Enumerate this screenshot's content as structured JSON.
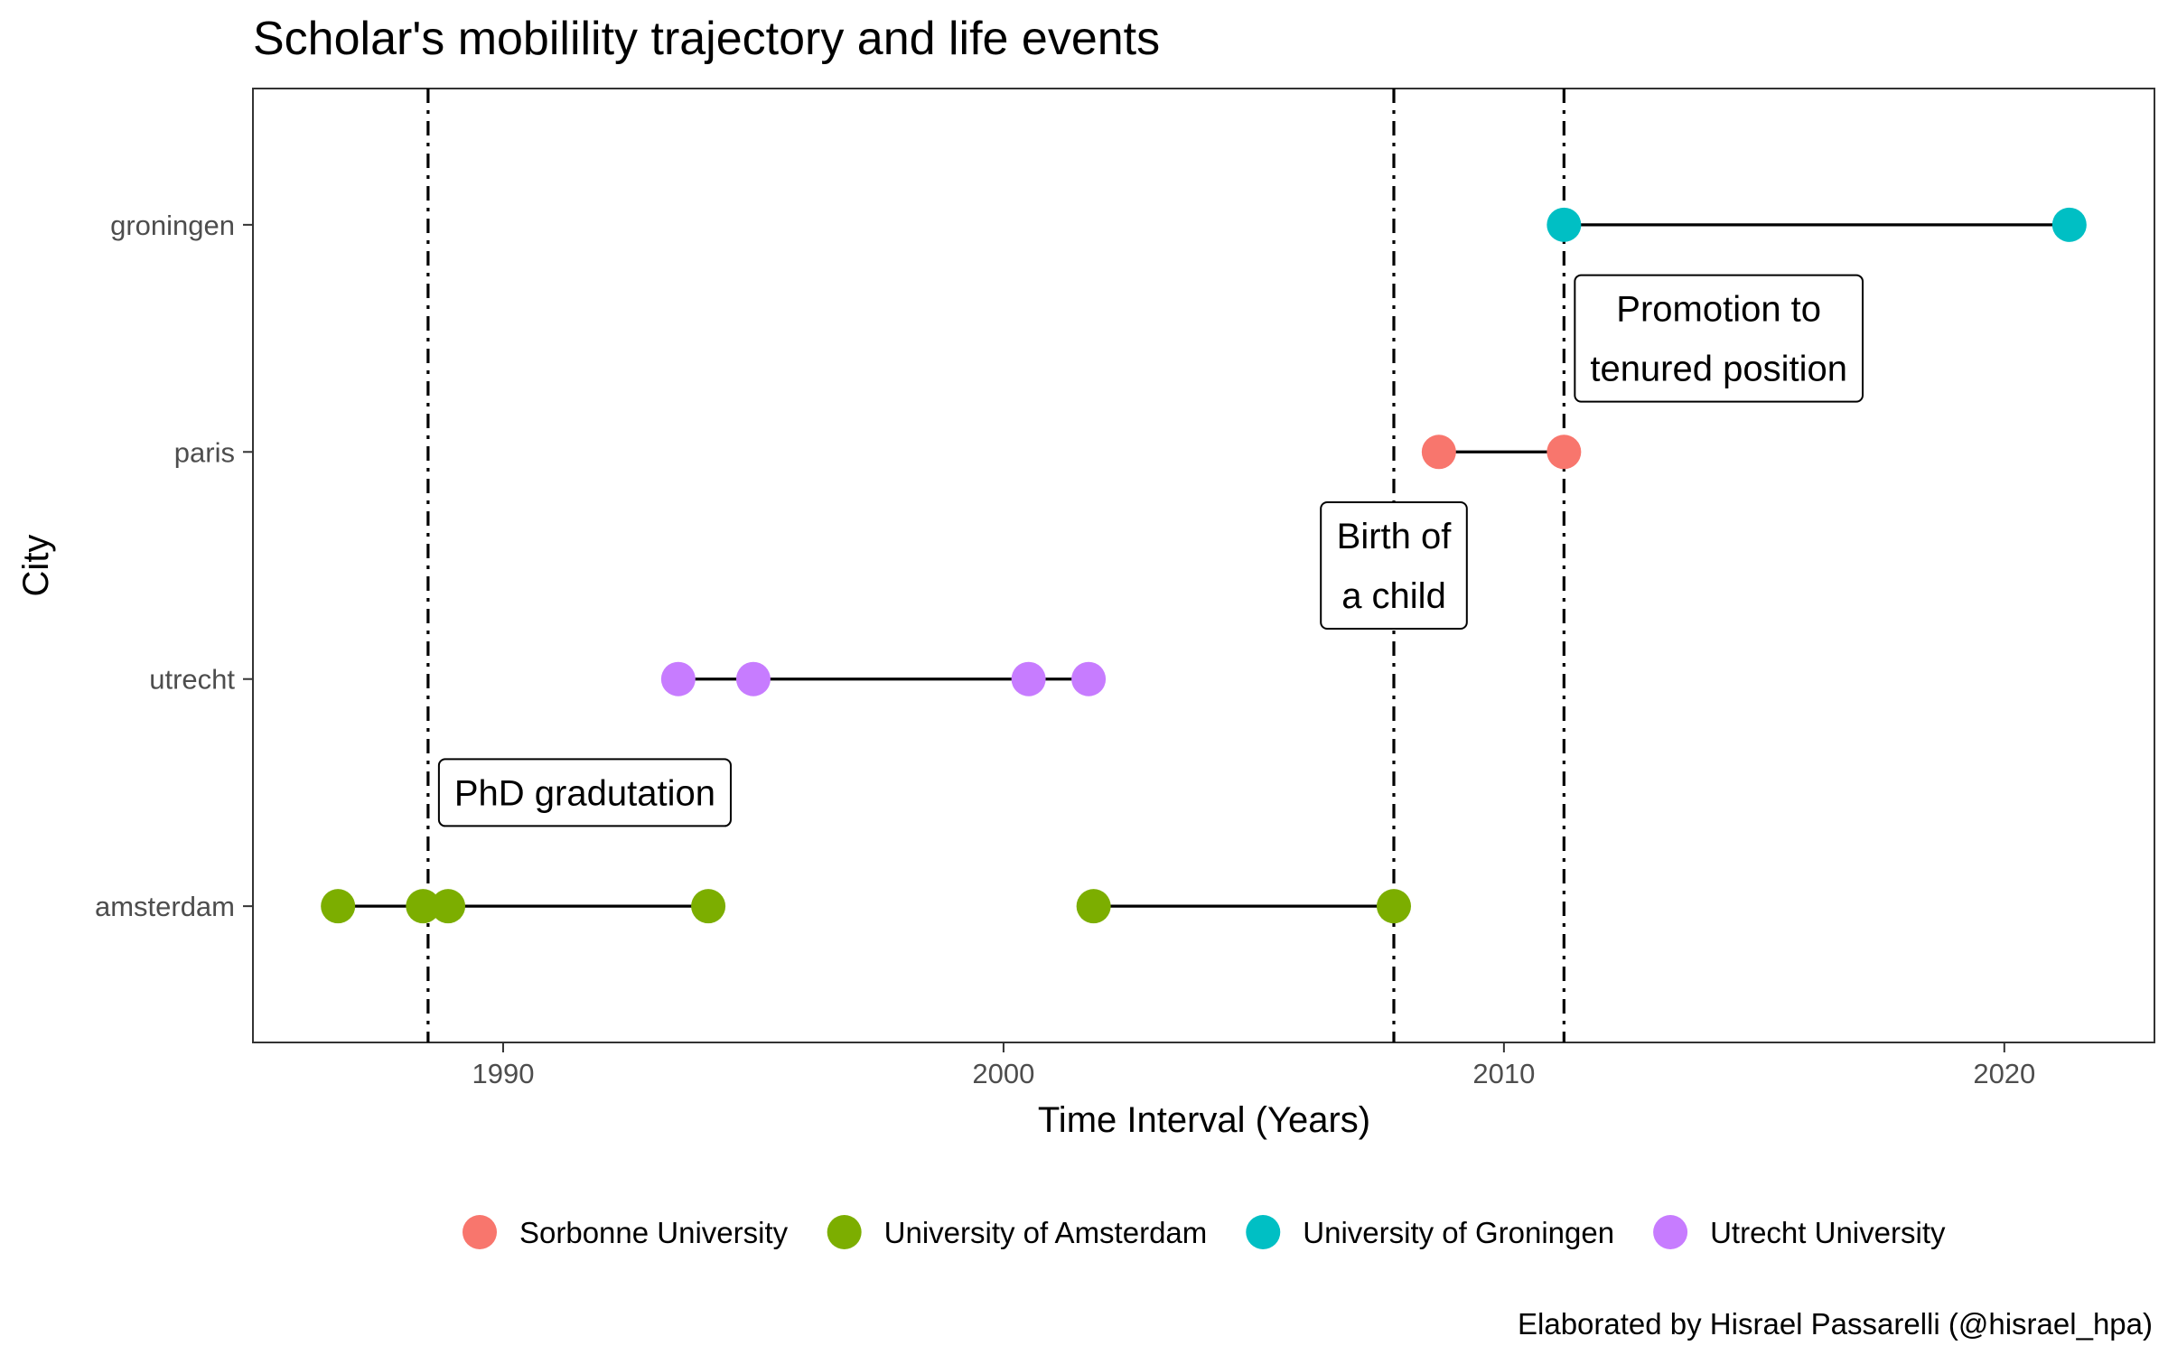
{
  "chart_data": {
    "type": "line",
    "title": "Scholar's mobilility trajectory and life events",
    "xlabel": "Time Interval (Years)",
    "ylabel": "City",
    "xlim": [
      1985,
      2023
    ],
    "x_ticks": [
      1990,
      2000,
      2010,
      2020
    ],
    "categories": [
      "amsterdam",
      "utrecht",
      "paris",
      "groningen"
    ],
    "grid": false,
    "legend_position": "bottom",
    "colors": {
      "Sorbonne University": "#F8766D",
      "University of Amsterdam": "#7CAE00",
      "University of Groningen": "#00BFC4",
      "Utrecht University": "#C77CFF",
      "line": "#000000"
    },
    "legend": [
      "Sorbonne University",
      "University of Amsterdam",
      "University of Groningen",
      "Utrecht University"
    ],
    "segments": [
      {
        "city": "amsterdam",
        "start": 1986.7,
        "end": 1988.9
      },
      {
        "city": "amsterdam",
        "start": 1988.4,
        "end": 1994.1
      },
      {
        "city": "amsterdam",
        "start": 2001.8,
        "end": 2007.8
      },
      {
        "city": "utrecht",
        "start": 1993.5,
        "end": 1995.0
      },
      {
        "city": "utrecht",
        "start": 1995.0,
        "end": 2000.5
      },
      {
        "city": "utrecht",
        "start": 2000.5,
        "end": 2001.7
      },
      {
        "city": "paris",
        "start": 2008.7,
        "end": 2011.2
      },
      {
        "city": "groningen",
        "start": 2011.2,
        "end": 2021.3
      }
    ],
    "series": [
      {
        "name": "Sorbonne University",
        "points": [
          {
            "x": 2008.7,
            "y": "paris"
          },
          {
            "x": 2011.2,
            "y": "paris"
          }
        ]
      },
      {
        "name": "University of Amsterdam",
        "points": [
          {
            "x": 1986.7,
            "y": "amsterdam"
          },
          {
            "x": 1988.4,
            "y": "amsterdam"
          },
          {
            "x": 1988.9,
            "y": "amsterdam"
          },
          {
            "x": 1994.1,
            "y": "amsterdam"
          },
          {
            "x": 2001.8,
            "y": "amsterdam"
          },
          {
            "x": 2007.8,
            "y": "amsterdam"
          }
        ]
      },
      {
        "name": "University of Groningen",
        "points": [
          {
            "x": 2011.2,
            "y": "groningen"
          },
          {
            "x": 2021.3,
            "y": "groningen"
          }
        ]
      },
      {
        "name": "Utrecht University",
        "points": [
          {
            "x": 1993.5,
            "y": "utrecht"
          },
          {
            "x": 1995.0,
            "y": "utrecht"
          },
          {
            "x": 2000.5,
            "y": "utrecht"
          },
          {
            "x": 2001.7,
            "y": "utrecht"
          }
        ]
      }
    ],
    "events": [
      {
        "x": 1988.5,
        "lines": [
          "PhD gradutation"
        ],
        "y_level": "between amsterdam and utrecht"
      },
      {
        "x": 2007.8,
        "lines": [
          "Birth of",
          "a child"
        ],
        "y_level": "between utrecht and paris"
      },
      {
        "x": 2011.2,
        "lines": [
          "Promotion to",
          "tenured position"
        ],
        "y_level": "between paris and groningen"
      }
    ],
    "caption": "Elaborated by Hisrael Passarelli (@hisrael_hpa)"
  }
}
